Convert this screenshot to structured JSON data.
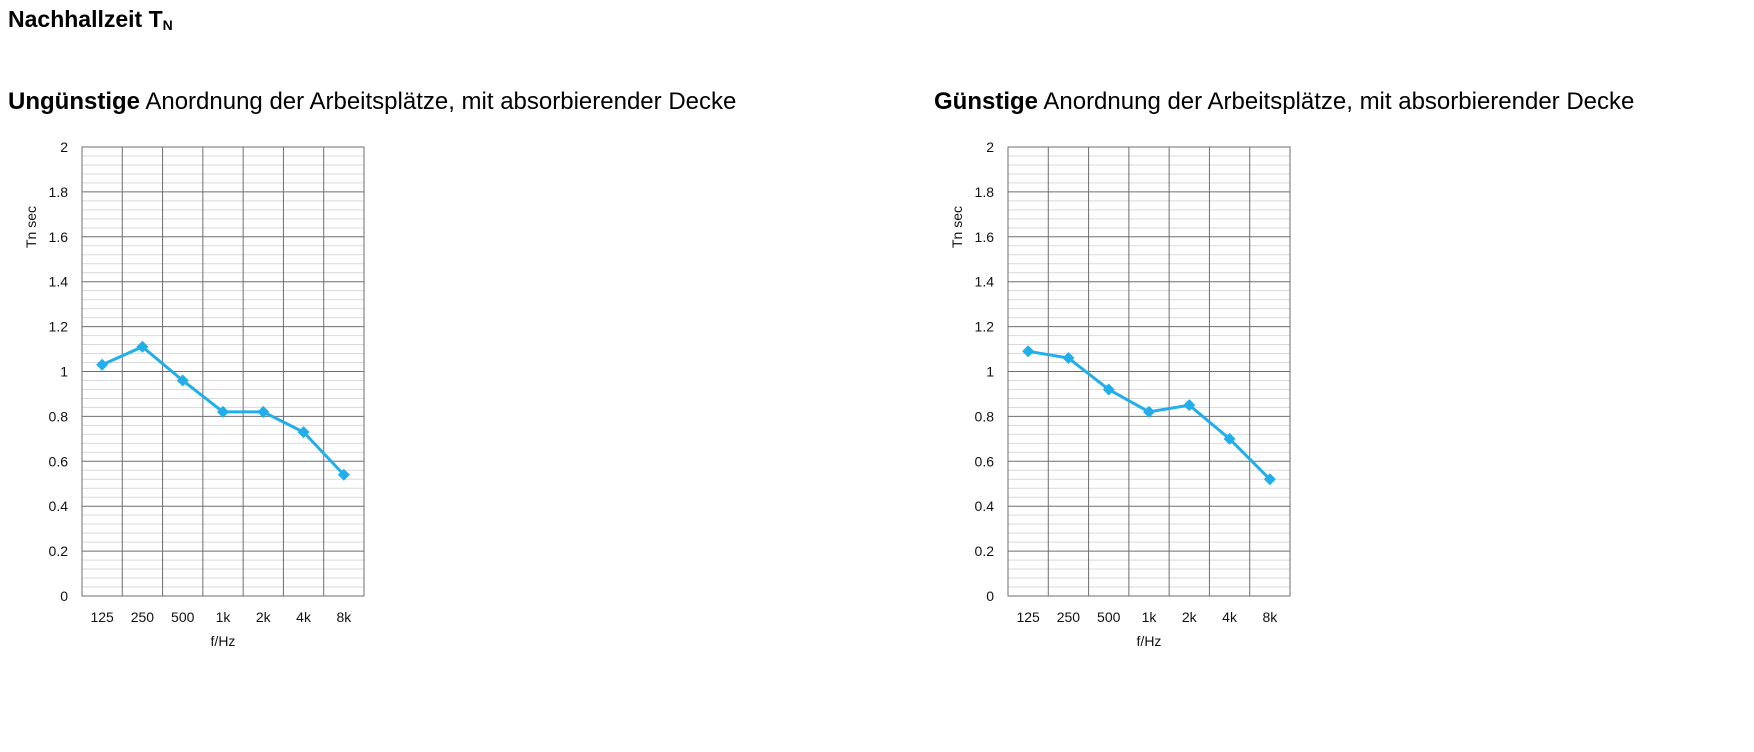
{
  "page": {
    "title": "Nachhallzeit T",
    "title_subscript": "N"
  },
  "chart_data": [
    {
      "type": "line",
      "title_bold": "Ungünstige",
      "title": "Anordnung der Arbeitsplätze, mit absorbierender Decke",
      "xlabel": "f/Hz",
      "ylabel": "Tn sec",
      "categories": [
        "125",
        "250",
        "500",
        "1k",
        "2k",
        "4k",
        "8k"
      ],
      "series": [
        {
          "values": [
            1.03,
            1.11,
            0.96,
            0.82,
            0.82,
            0.73,
            0.54
          ]
        }
      ],
      "ylim": [
        0,
        2
      ],
      "yticks": [
        "0",
        "0.2",
        "0.4",
        "0.6",
        "0.8",
        "1",
        "1.2",
        "1.4",
        "1.6",
        "1.8",
        "2"
      ],
      "grid": true,
      "minor_grid_step": 0.04,
      "line_color": "#22aeea",
      "marker": "diamond",
      "legend": "none"
    },
    {
      "type": "line",
      "title_bold": "Günstige",
      "title": "Anordnung der Arbeitsplätze, mit absorbierender Decke",
      "xlabel": "f/Hz",
      "ylabel": "Tn sec",
      "categories": [
        "125",
        "250",
        "500",
        "1k",
        "2k",
        "4k",
        "8k"
      ],
      "series": [
        {
          "values": [
            1.09,
            1.06,
            0.92,
            0.82,
            0.85,
            0.7,
            0.52
          ]
        }
      ],
      "ylim": [
        0,
        2
      ],
      "yticks": [
        "0",
        "0.2",
        "0.4",
        "0.6",
        "0.8",
        "1",
        "1.2",
        "1.4",
        "1.6",
        "1.8",
        "2"
      ],
      "grid": true,
      "minor_grid_step": 0.04,
      "line_color": "#22aeea",
      "marker": "diamond",
      "legend": "none"
    }
  ]
}
